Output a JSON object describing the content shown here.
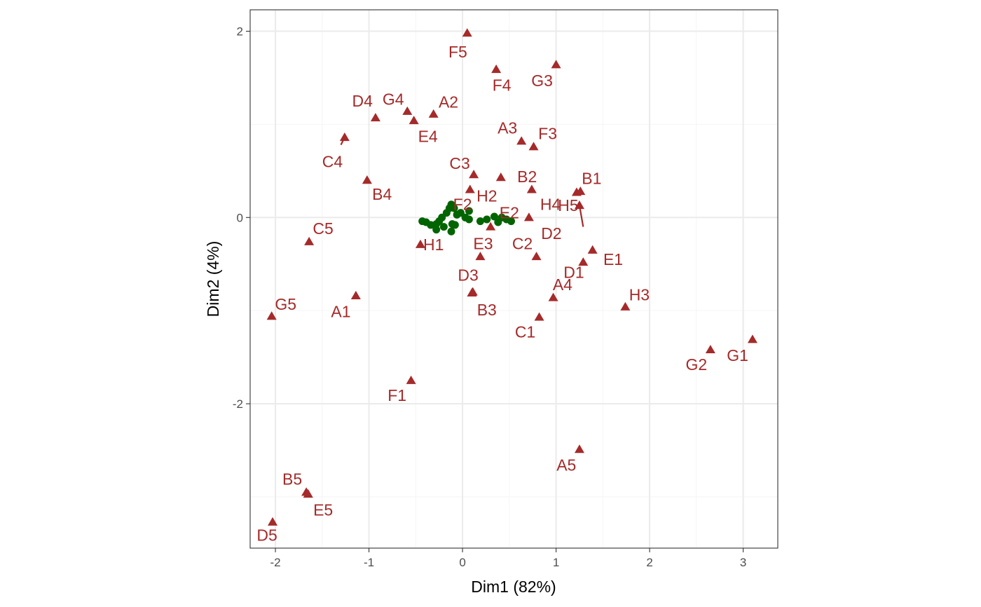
{
  "colors": {
    "labeled_series": "#A52A2A",
    "unlabeled_series": "#006400",
    "grid_major": "#EBEBEB",
    "grid_minor": "#F5F5F5",
    "panel_border": "#333333"
  },
  "chart_data": {
    "type": "scatter",
    "title": "",
    "xlabel": "Dim1 (82%)",
    "ylabel": "Dim2 (4%)",
    "xlim": [
      -2.27,
      3.37
    ],
    "ylim": [
      -3.55,
      2.23
    ],
    "x_ticks": [
      -2,
      -1,
      0,
      1,
      2,
      3
    ],
    "y_ticks": [
      -2,
      0,
      2
    ],
    "x_tick_labels": [
      "-2",
      "-1",
      "0",
      "1",
      "2",
      "3"
    ],
    "y_tick_labels": [
      "-2",
      "0",
      "2"
    ],
    "grid": true,
    "legend": "none",
    "series": [
      {
        "marker": "triangle",
        "color": "#A52A2A",
        "points": [
          {
            "label": "F5",
            "x": 0.05,
            "y": 1.98
          },
          {
            "label": "F4",
            "x": 0.36,
            "y": 1.59
          },
          {
            "label": "G3",
            "x": 1.0,
            "y": 1.64
          },
          {
            "label": "G4",
            "x": -0.59,
            "y": 1.14
          },
          {
            "label": "A2",
            "x": -0.31,
            "y": 1.11
          },
          {
            "label": "D4",
            "x": -0.93,
            "y": 1.07
          },
          {
            "label": "E4",
            "x": -0.52,
            "y": 1.04
          },
          {
            "label": "C4",
            "x": -1.26,
            "y": 0.86
          },
          {
            "label": "A3",
            "x": 0.63,
            "y": 0.82
          },
          {
            "label": "F3",
            "x": 0.76,
            "y": 0.76
          },
          {
            "label": "C3",
            "x": 0.12,
            "y": 0.46
          },
          {
            "label": "B2",
            "x": 0.74,
            "y": 0.3
          },
          {
            "label": "B4",
            "x": -1.02,
            "y": 0.4
          },
          {
            "label": "H2",
            "x": 0.41,
            "y": 0.43
          },
          {
            "label": "B1",
            "x": 1.26,
            "y": 0.28
          },
          {
            "label": "H4",
            "x": 1.22,
            "y": 0.27
          },
          {
            "label": "H5",
            "x": 1.25,
            "y": 0.13
          },
          {
            "label": "D2",
            "x": 0.71,
            "y": 0.0
          },
          {
            "label": "E2",
            "x": 0.3,
            "y": -0.1
          },
          {
            "label": "F2",
            "x": 0.08,
            "y": 0.3
          },
          {
            "label": "C5",
            "x": -1.64,
            "y": -0.26
          },
          {
            "label": "H1",
            "x": -0.45,
            "y": -0.29
          },
          {
            "label": "E3",
            "x": 0.19,
            "y": -0.42
          },
          {
            "label": "C2",
            "x": 0.79,
            "y": -0.42
          },
          {
            "label": "E1",
            "x": 1.39,
            "y": -0.35
          },
          {
            "label": "D1",
            "x": 1.29,
            "y": -0.48
          },
          {
            "label": "D3",
            "x": 0.1,
            "y": -0.81
          },
          {
            "label": "A4",
            "x": 0.97,
            "y": -0.86
          },
          {
            "label": "H3",
            "x": 1.74,
            "y": -0.96
          },
          {
            "label": "A1",
            "x": -1.14,
            "y": -0.84
          },
          {
            "label": "B3",
            "x": 0.11,
            "y": -0.8
          },
          {
            "label": "G5",
            "x": -2.04,
            "y": -1.06
          },
          {
            "label": "C1",
            "x": 0.82,
            "y": -1.07
          },
          {
            "label": "G2",
            "x": 2.65,
            "y": -1.42
          },
          {
            "label": "G1",
            "x": 3.1,
            "y": -1.31
          },
          {
            "label": "F1",
            "x": -0.55,
            "y": -1.75
          },
          {
            "label": "A5",
            "x": 1.25,
            "y": -2.49
          },
          {
            "label": "B5",
            "x": -1.67,
            "y": -2.95
          },
          {
            "label": "E5",
            "x": -1.65,
            "y": -2.97
          },
          {
            "label": "D5",
            "x": -2.03,
            "y": -3.27
          }
        ]
      },
      {
        "marker": "circle",
        "color": "#006400",
        "points": [
          {
            "x": -0.43,
            "y": -0.04
          },
          {
            "x": -0.39,
            "y": -0.05
          },
          {
            "x": -0.34,
            "y": -0.08
          },
          {
            "x": -0.28,
            "y": -0.07
          },
          {
            "x": -0.28,
            "y": -0.13
          },
          {
            "x": -0.25,
            "y": -0.04
          },
          {
            "x": -0.22,
            "y": 0.0
          },
          {
            "x": -0.2,
            "y": -0.1
          },
          {
            "x": -0.17,
            "y": 0.05
          },
          {
            "x": -0.14,
            "y": 0.1
          },
          {
            "x": -0.12,
            "y": 0.14
          },
          {
            "x": -0.12,
            "y": -0.15
          },
          {
            "x": -0.11,
            "y": -0.07
          },
          {
            "x": -0.09,
            "y": 0.1
          },
          {
            "x": -0.08,
            "y": -0.08
          },
          {
            "x": -0.06,
            "y": 0.03
          },
          {
            "x": -0.02,
            "y": 0.05
          },
          {
            "x": 0.03,
            "y": 0.0
          },
          {
            "x": 0.07,
            "y": 0.07
          },
          {
            "x": 0.07,
            "y": -0.02
          },
          {
            "x": 0.19,
            "y": -0.04
          },
          {
            "x": 0.26,
            "y": -0.02
          },
          {
            "x": 0.34,
            "y": 0.01
          },
          {
            "x": 0.38,
            "y": -0.05
          },
          {
            "x": 0.42,
            "y": 0.0
          },
          {
            "x": 0.47,
            "y": -0.02
          },
          {
            "x": 0.52,
            "y": -0.04
          }
        ]
      }
    ],
    "label_offsets": {
      "F5": [
        -0.1,
        -0.2
      ],
      "F4": [
        0.06,
        -0.17
      ],
      "G3": [
        -0.15,
        -0.17
      ],
      "G4": [
        -0.15,
        0.13
      ],
      "A2": [
        0.16,
        0.13
      ],
      "D4": [
        -0.14,
        0.18
      ],
      "E4": [
        0.15,
        -0.17
      ],
      "C4": [
        -0.13,
        -0.26
      ],
      "A3": [
        -0.15,
        0.14
      ],
      "F3": [
        0.15,
        0.14
      ],
      "C3": [
        -0.15,
        0.12
      ],
      "B2": [
        -0.05,
        0.14
      ],
      "B4": [
        0.16,
        -0.15
      ],
      "H2": [
        -0.15,
        -0.2
      ],
      "B1": [
        0.12,
        0.14
      ],
      "H4": [
        -0.28,
        -0.13
      ],
      "H5": [
        -0.12,
        0.0
      ],
      "D2": [
        0.24,
        -0.17
      ],
      "E2": [
        0.2,
        0.15
      ],
      "F2": [
        -0.08,
        -0.16
      ],
      "C5": [
        0.15,
        0.14
      ],
      "H1": [
        0.14,
        0.0
      ],
      "E3": [
        0.03,
        0.14
      ],
      "C2": [
        -0.15,
        0.14
      ],
      "E1": [
        0.22,
        -0.1
      ],
      "D1": [
        -0.1,
        -0.11
      ],
      "D3": [
        -0.04,
        0.19
      ],
      "A4": [
        0.1,
        0.14
      ],
      "H3": [
        0.15,
        0.13
      ],
      "A1": [
        -0.16,
        -0.17
      ],
      "B3": [
        0.15,
        -0.19
      ],
      "G5": [
        0.15,
        0.13
      ],
      "C1": [
        -0.15,
        -0.16
      ],
      "G2": [
        -0.15,
        -0.16
      ],
      "G1": [
        -0.16,
        -0.17
      ],
      "F1": [
        -0.15,
        -0.16
      ],
      "A5": [
        -0.14,
        -0.17
      ],
      "B5": [
        -0.15,
        0.14
      ],
      "E5": [
        0.16,
        -0.17
      ],
      "D5": [
        -0.06,
        -0.14
      ]
    },
    "leader_lines": [
      {
        "from": "C4",
        "to": [
          -1.3,
          0.78
        ]
      },
      {
        "from": "H5",
        "to": [
          1.29,
          -0.1
        ]
      }
    ]
  }
}
